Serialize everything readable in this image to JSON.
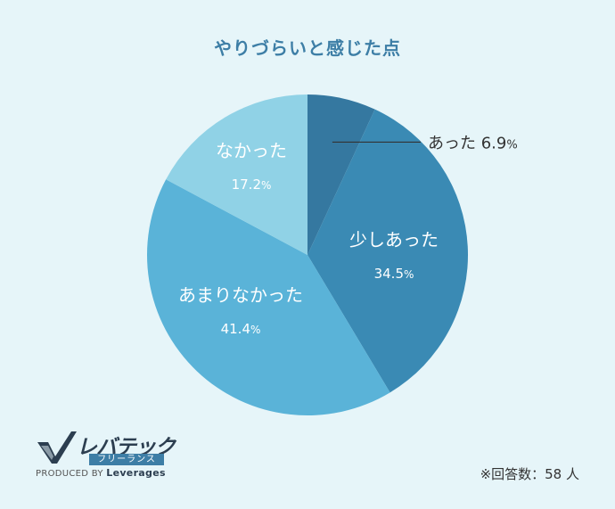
{
  "chart_data": {
    "type": "pie",
    "title": "やりづらいと感じた点",
    "slices": [
      {
        "label": "あった",
        "value": 6.9,
        "value_text": "6.9",
        "color": "#3578a0"
      },
      {
        "label": "少しあった",
        "value": 34.5,
        "value_text": "34.5",
        "color": "#3a8ab4"
      },
      {
        "label": "あまりなかった",
        "value": 41.4,
        "value_text": "41.4",
        "color": "#5ab3d8"
      },
      {
        "label": "なかった",
        "value": 17.2,
        "value_text": "17.2",
        "color": "#90d2e6"
      }
    ],
    "unit": "%"
  },
  "logo": {
    "brand": "レバテック",
    "sub": "フリーランス",
    "produced_by": "PRODUCED BY",
    "company": "Leverages"
  },
  "footnote": "※回答数：58 人",
  "colors": {
    "background": "#e6f5f9",
    "title": "#3d7ea6"
  }
}
